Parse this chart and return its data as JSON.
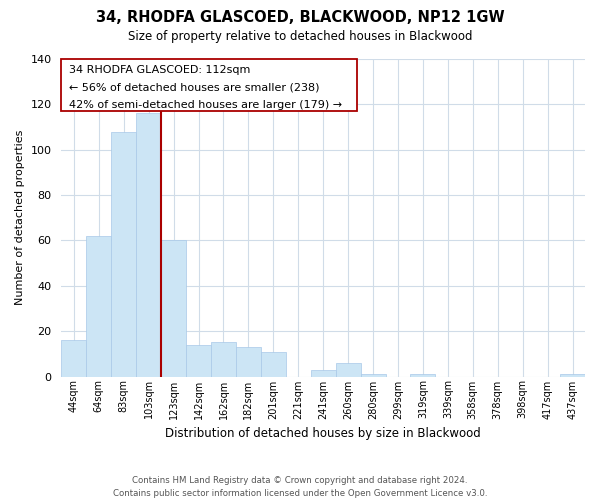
{
  "title": "34, RHODFA GLASCOED, BLACKWOOD, NP12 1GW",
  "subtitle": "Size of property relative to detached houses in Blackwood",
  "xlabel": "Distribution of detached houses by size in Blackwood",
  "ylabel": "Number of detached properties",
  "bar_labels": [
    "44sqm",
    "64sqm",
    "83sqm",
    "103sqm",
    "123sqm",
    "142sqm",
    "162sqm",
    "182sqm",
    "201sqm",
    "221sqm",
    "241sqm",
    "260sqm",
    "280sqm",
    "299sqm",
    "319sqm",
    "339sqm",
    "358sqm",
    "378sqm",
    "398sqm",
    "417sqm",
    "437sqm"
  ],
  "bar_values": [
    16,
    62,
    108,
    116,
    60,
    14,
    15,
    13,
    11,
    0,
    3,
    6,
    1,
    0,
    1,
    0,
    0,
    0,
    0,
    0,
    1
  ],
  "bar_color": "#cce5f5",
  "bar_edge_color": "#a8c8e8",
  "highlight_index": 3,
  "red_line_after_index": 3,
  "highlight_color": "#aa0000",
  "ylim": [
    0,
    140
  ],
  "yticks": [
    0,
    20,
    40,
    60,
    80,
    100,
    120,
    140
  ],
  "annotation_title": "34 RHODFA GLASCOED: 112sqm",
  "annotation_line1": "← 56% of detached houses are smaller (238)",
  "annotation_line2": "42% of semi-detached houses are larger (179) →",
  "footer_line1": "Contains HM Land Registry data © Crown copyright and database right 2024.",
  "footer_line2": "Contains public sector information licensed under the Open Government Licence v3.0.",
  "background_color": "#ffffff",
  "grid_color": "#d0dce8"
}
